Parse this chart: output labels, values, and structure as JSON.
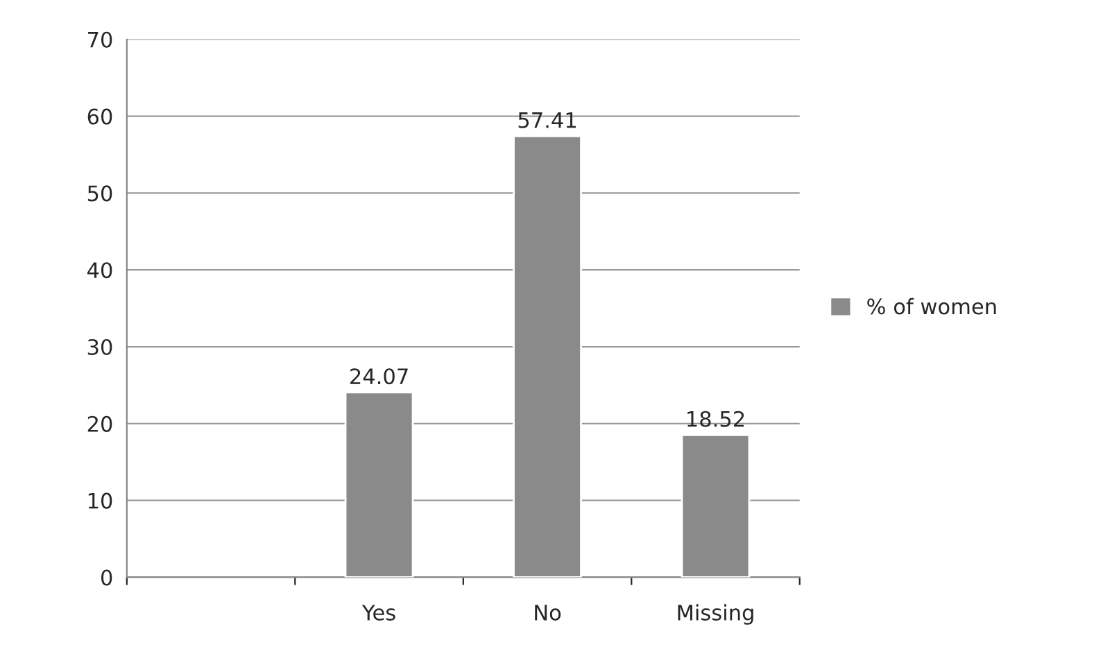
{
  "chart_data": {
    "type": "bar",
    "categories": [
      null,
      "Yes",
      "No",
      "Missing"
    ],
    "series": [
      {
        "name": "% of women",
        "color": "#8a8a8a",
        "values": [
          null,
          24.07,
          57.41,
          18.52
        ]
      }
    ],
    "ylim": [
      0,
      70
    ],
    "yticks": [
      0,
      10,
      20,
      30,
      40,
      50,
      60,
      70
    ],
    "grid": "y",
    "legend": "right",
    "data_labels": true
  }
}
